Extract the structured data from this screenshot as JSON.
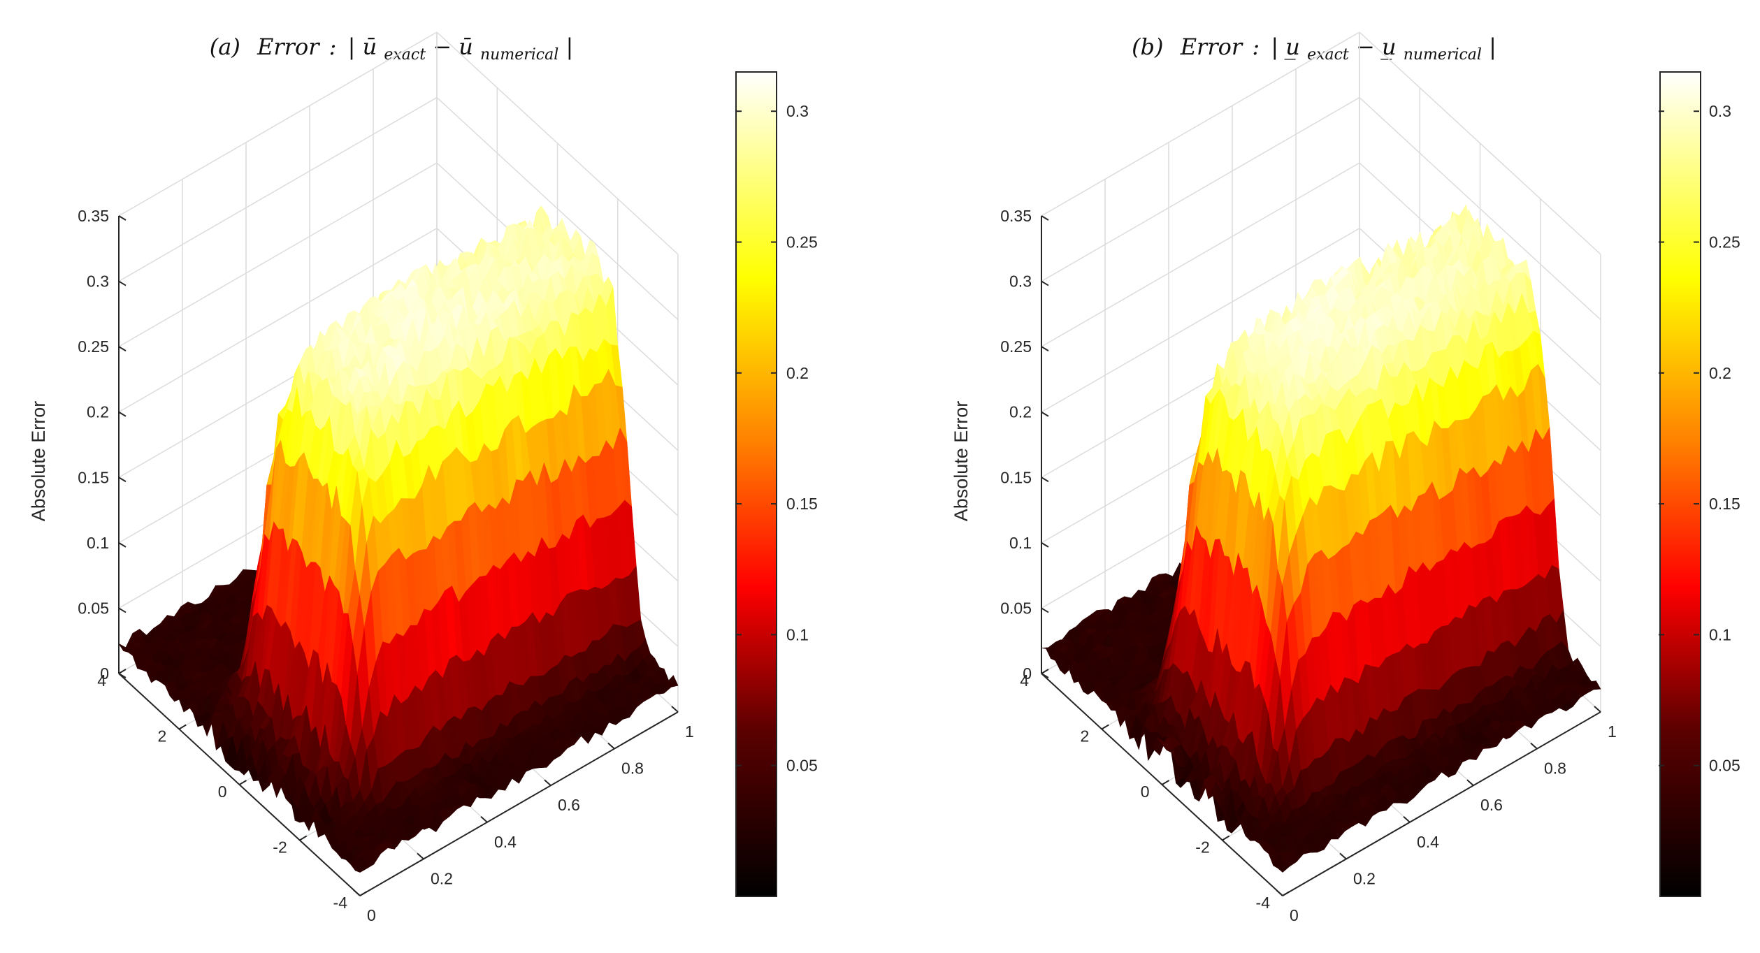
{
  "figure": {
    "panels_count": 2
  },
  "chart_data": [
    {
      "type": "surface",
      "title_tag": "(a)",
      "title_word": "Error",
      "title_expr": "|ū_exact − ū_numerical|",
      "title_parts": {
        "open": "|",
        "var1": "ū",
        "sub1": "exact",
        "minus": " − ",
        "var2": "ū",
        "sub2": "numerical",
        "close": "|"
      },
      "zlabel": "Absolute Error",
      "xlabel": "",
      "ylabel": "",
      "x_ticks": [
        "0",
        "0.2",
        "0.4",
        "0.6",
        "0.8",
        "1"
      ],
      "y_ticks": [
        "-4",
        "-2",
        "0",
        "2",
        "4"
      ],
      "z_ticks": [
        "0",
        "0.05",
        "0.1",
        "0.15",
        "0.2",
        "0.25",
        "0.3",
        "0.35"
      ],
      "xlim": [
        0,
        1
      ],
      "ylim": [
        -4,
        4
      ],
      "zlim": [
        0,
        0.35
      ],
      "colorbar": {
        "ticks": [
          "0.05",
          "0.1",
          "0.15",
          "0.2",
          "0.25",
          "0.3"
        ],
        "min": 0,
        "max": 0.315,
        "colormap": "hot"
      },
      "surface": {
        "background_error": 0.02,
        "noise": 0.008,
        "peak_error": 0.3,
        "pulse_center_y": -0.6,
        "pulse_width_y": 1.9,
        "x_onset": 0.15
      },
      "grid": true
    },
    {
      "type": "surface",
      "title_tag": "(b)",
      "title_word": "Error",
      "title_expr": "|u̲_exact − u̲_numerical|",
      "title_parts": {
        "open": "|",
        "var1": "u̲",
        "sub1": "exact",
        "minus": " − ",
        "var2": "u̲",
        "sub2": "numerical",
        "close": "|"
      },
      "zlabel": "Absolute Error",
      "xlabel": "",
      "ylabel": "",
      "x_ticks": [
        "0",
        "0.2",
        "0.4",
        "0.6",
        "0.8",
        "1"
      ],
      "y_ticks": [
        "-4",
        "-2",
        "0",
        "2",
        "4"
      ],
      "z_ticks": [
        "0",
        "0.05",
        "0.1",
        "0.15",
        "0.2",
        "0.25",
        "0.3",
        "0.35"
      ],
      "xlim": [
        0,
        1
      ],
      "ylim": [
        -4,
        4
      ],
      "zlim": [
        0,
        0.35
      ],
      "colorbar": {
        "ticks": [
          "0.05",
          "0.1",
          "0.15",
          "0.2",
          "0.25",
          "0.3"
        ],
        "min": 0,
        "max": 0.315,
        "colormap": "hot"
      },
      "surface": {
        "background_error": 0.02,
        "noise": 0.008,
        "peak_error": 0.3,
        "pulse_center_y": -0.6,
        "pulse_width_y": 1.9,
        "x_onset": 0.15
      },
      "grid": true
    }
  ]
}
